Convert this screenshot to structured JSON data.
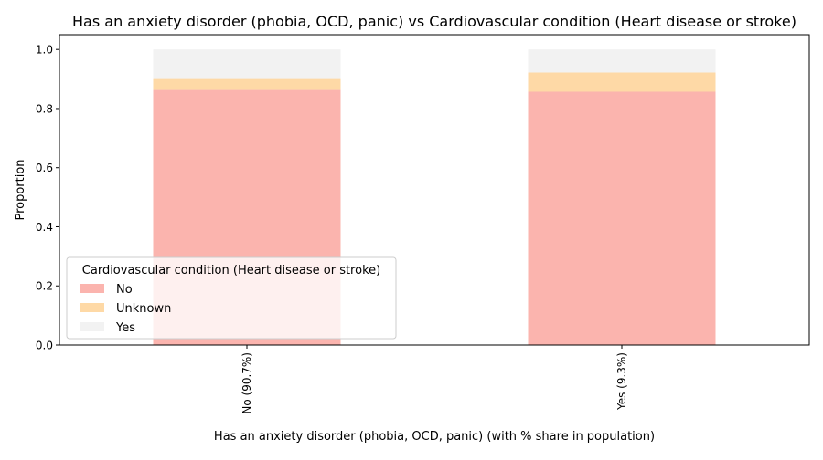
{
  "chart_data": {
    "type": "bar",
    "stacked": true,
    "title": "Has an anxiety disorder (phobia, OCD, panic) vs Cardiovascular condition (Heart disease or stroke)",
    "xlabel": "Has an anxiety disorder (phobia, OCD, panic) (with % share in population)",
    "ylabel": "Proportion",
    "categories": [
      "No (90.7%)",
      "Yes (9.3%)"
    ],
    "ylim": [
      0,
      1.05
    ],
    "yticks": [
      "0.0",
      "0.2",
      "0.4",
      "0.6",
      "0.8",
      "1.0"
    ],
    "ytick_values": [
      0.0,
      0.2,
      0.4,
      0.6,
      0.8,
      1.0
    ],
    "series": [
      {
        "name": "No",
        "values": [
          0.863,
          0.857
        ],
        "color": "#fbb4ae"
      },
      {
        "name": "Unknown",
        "values": [
          0.037,
          0.065
        ],
        "color": "#fed9a6"
      },
      {
        "name": "Yes",
        "values": [
          0.1,
          0.078
        ],
        "color": "#f2f2f2"
      }
    ],
    "legend": {
      "title": "Cardiovascular condition (Heart disease or stroke)",
      "location": "lower-left"
    },
    "grid": false
  }
}
